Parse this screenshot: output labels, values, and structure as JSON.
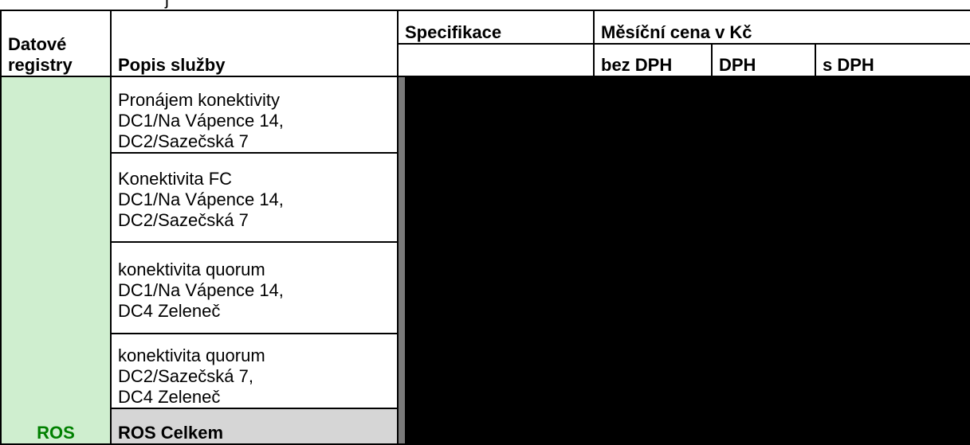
{
  "table": {
    "header": {
      "registry": [
        "Datové",
        "registry"
      ],
      "service": "Popis služby",
      "specification": "Specifikace",
      "price_group": "Měsíční cena v Kč",
      "price_columns": [
        "bez DPH",
        "DPH",
        "s DPH"
      ]
    },
    "registry_name": "ROS",
    "services": [
      {
        "lines": [
          "Pronájem konektivity",
          "DC1/Na Vápence 14,",
          "DC2/Sazečská 7"
        ]
      },
      {
        "lines": [
          "Konektivita FC",
          "DC1/Na Vápence 14,",
          "DC2/Sazečská 7"
        ]
      },
      {
        "lines": [
          "konektivita quorum",
          "DC1/Na Vápence 14,",
          "DC4 Zeleneč"
        ]
      },
      {
        "lines": [
          "konektivita quorum",
          "DC2/Sazečská 7,",
          "DC4 Zeleneč"
        ]
      }
    ],
    "total_label": "ROS Celkem"
  },
  "colors": {
    "registry_bg": "#cfeecf",
    "registry_text": "#008000",
    "total_bg": "#d6d6d6"
  }
}
